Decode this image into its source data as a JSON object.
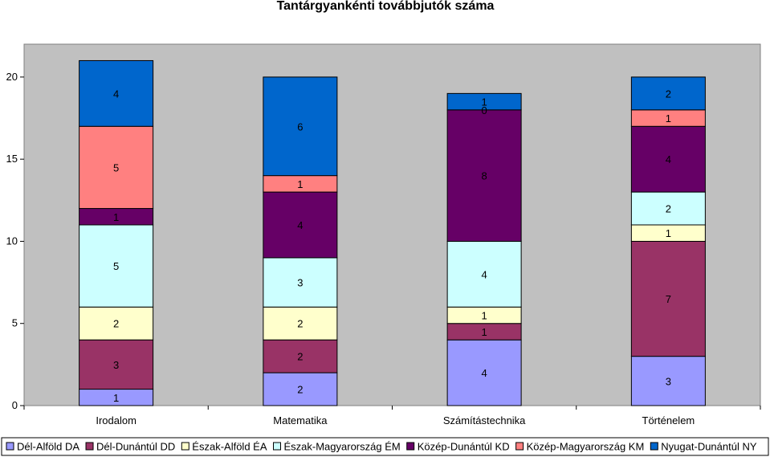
{
  "chart_data": {
    "type": "bar",
    "stacked": true,
    "title": "Tantárgyankénti továbbjutók száma",
    "categories": [
      "Irodalom",
      "Matematika",
      "Számítástechnika",
      "Történelem"
    ],
    "ylim": [
      0,
      22
    ],
    "yticks": [
      0,
      5,
      10,
      15,
      20
    ],
    "grid": false,
    "legend_position": "bottom",
    "plot_background": "#c0c0c0",
    "series": [
      {
        "name": "Dél-Alföld DA",
        "color": "#9999ff",
        "values": [
          1,
          2,
          4,
          3
        ]
      },
      {
        "name": "Dél-Dunántúl DD",
        "color": "#993366",
        "values": [
          3,
          2,
          1,
          7
        ]
      },
      {
        "name": "Észak-Alföld ÉA",
        "color": "#ffffcc",
        "values": [
          2,
          2,
          1,
          1
        ]
      },
      {
        "name": "Észak-Magyarország ÉM",
        "color": "#ccffff",
        "values": [
          5,
          3,
          4,
          2
        ]
      },
      {
        "name": "Közép-Dunántúl KD",
        "color": "#660066",
        "values": [
          1,
          4,
          8,
          4
        ]
      },
      {
        "name": "Közép-Magyarország KM",
        "color": "#ff8080",
        "values": [
          5,
          1,
          0,
          1
        ]
      },
      {
        "name": "Nyugat-Dunántúl NY",
        "color": "#0066cc",
        "values": [
          4,
          6,
          1,
          2
        ]
      }
    ]
  }
}
